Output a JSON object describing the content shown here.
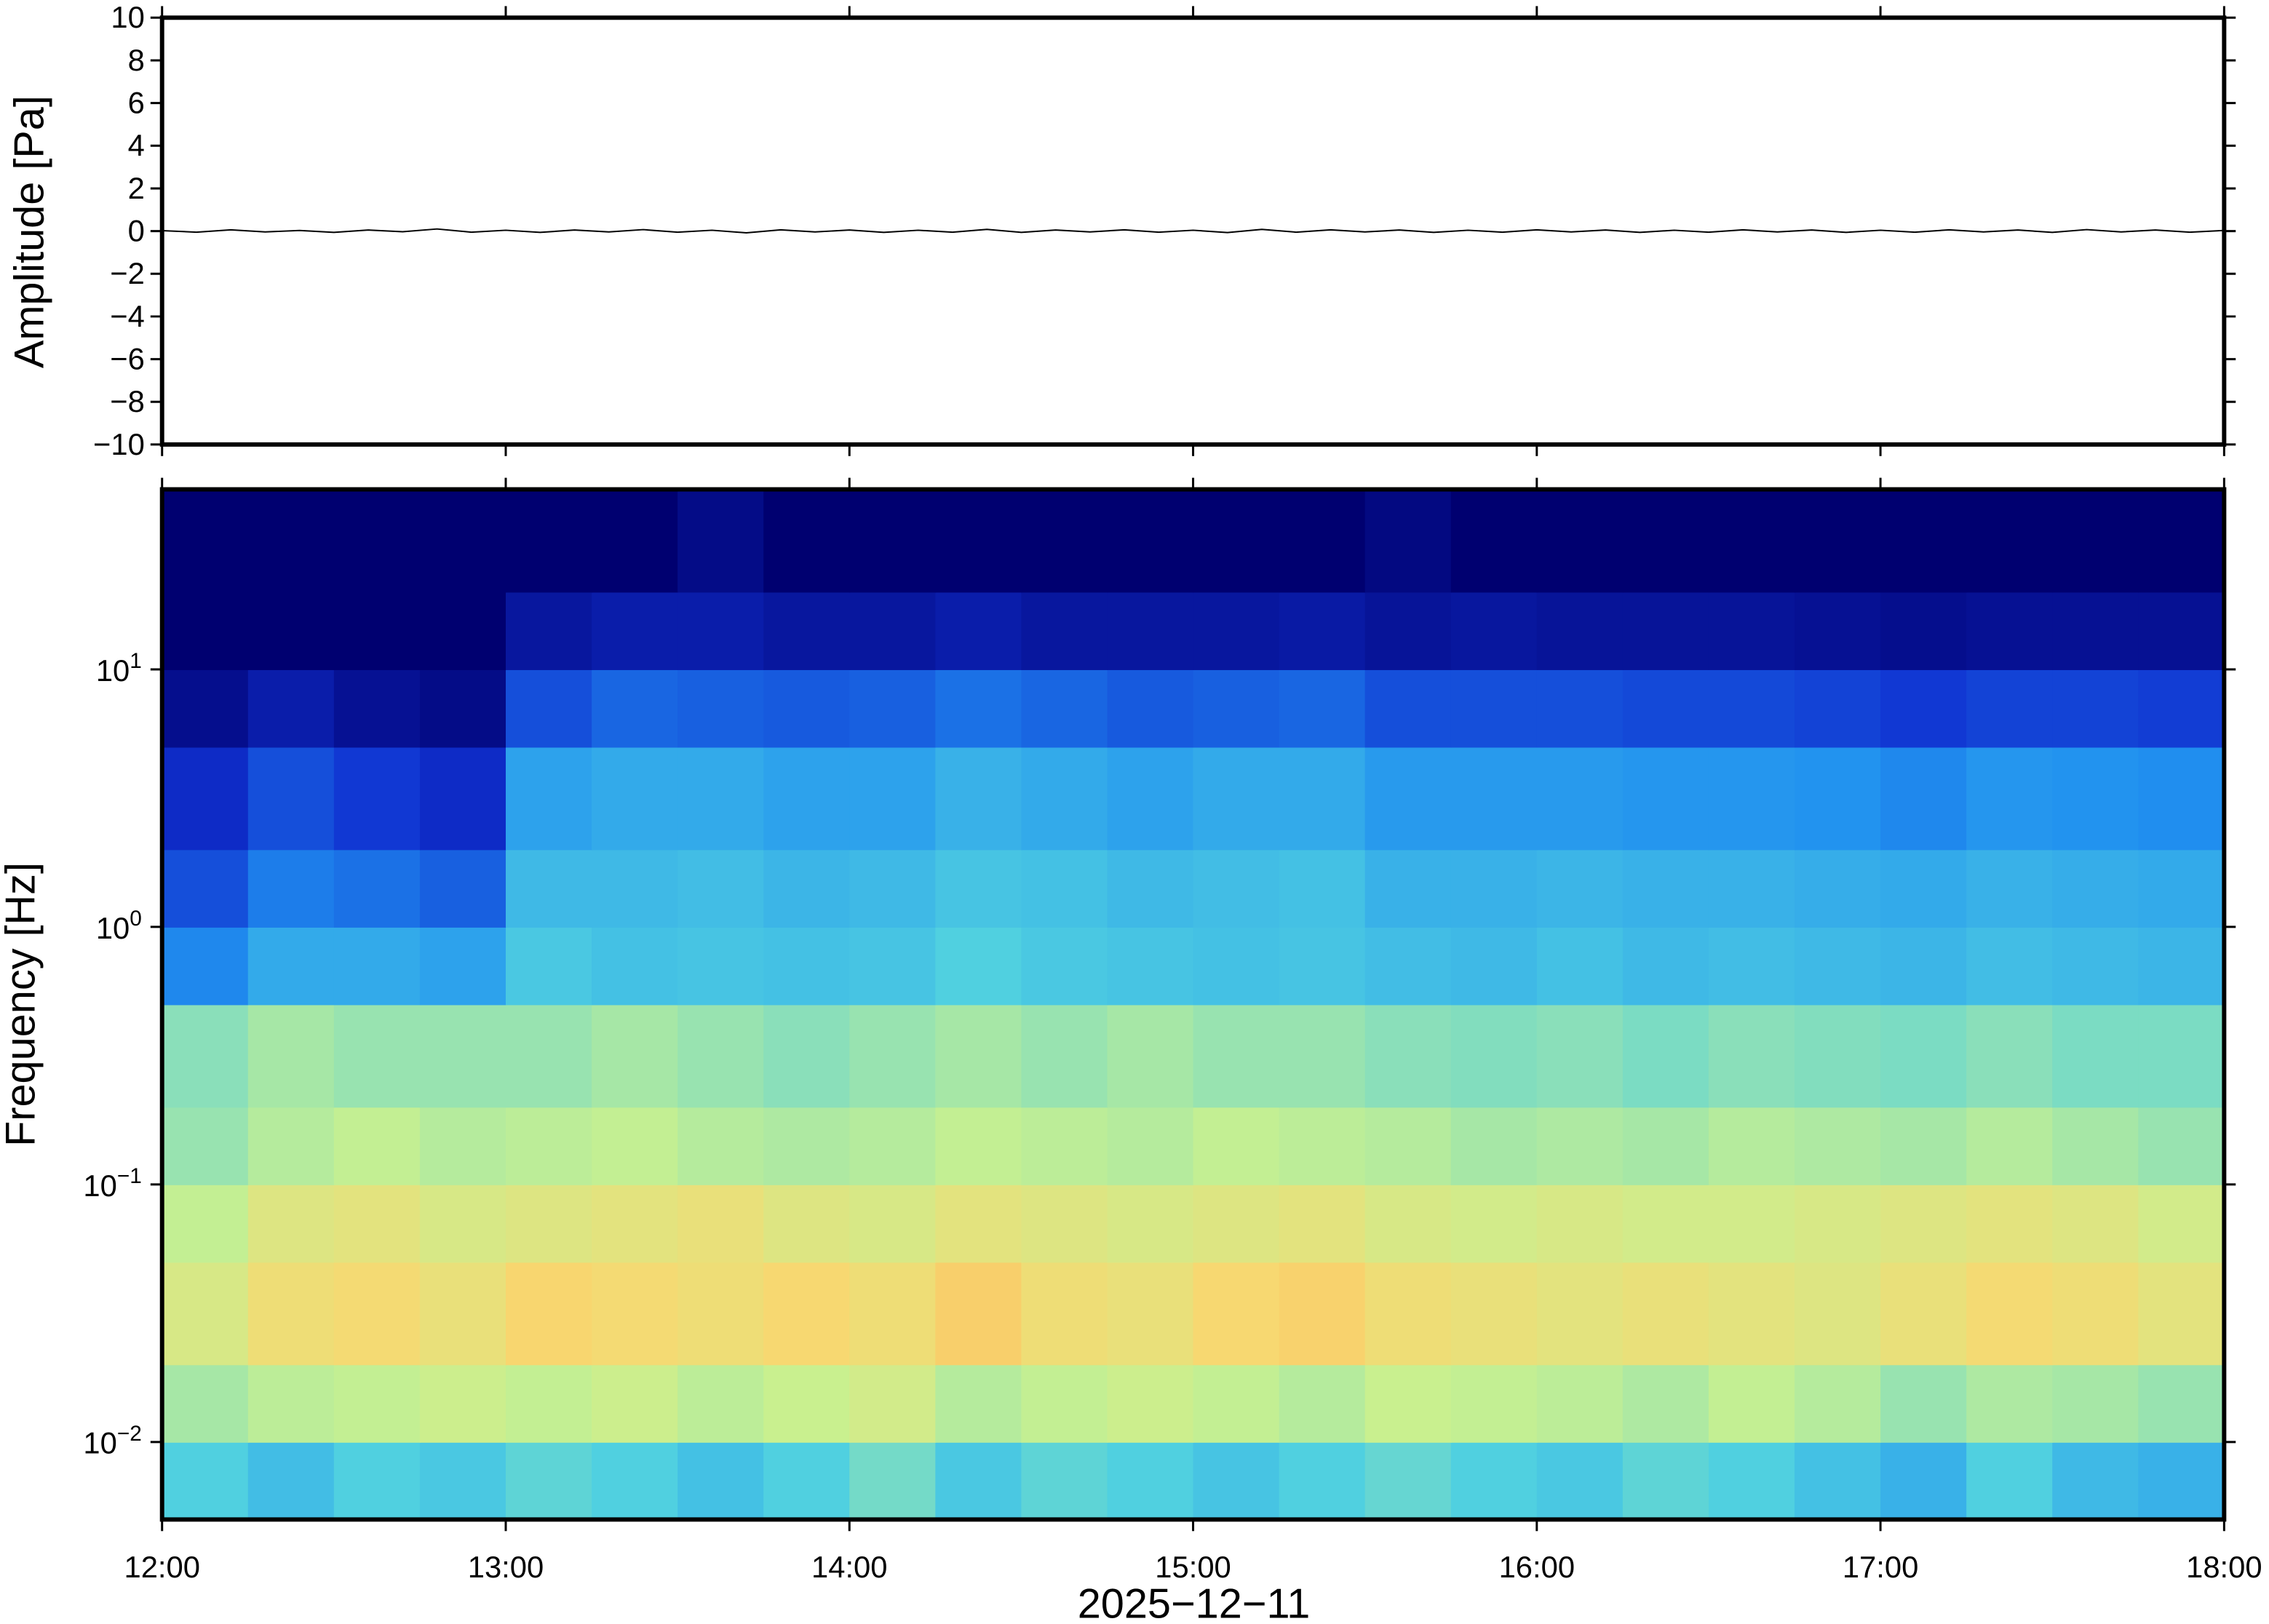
{
  "chart_data": [
    {
      "type": "line",
      "ylabel": "Amplitude [Pa]",
      "xlim": [
        12,
        18
      ],
      "ylim": [
        -10,
        10
      ],
      "yticks": [
        {
          "value": -10,
          "label": "−10"
        },
        {
          "value": -8,
          "label": "−8"
        },
        {
          "value": -6,
          "label": "−6"
        },
        {
          "value": -4,
          "label": "−4"
        },
        {
          "value": -2,
          "label": "−2"
        },
        0,
        2,
        4,
        6,
        8,
        10
      ],
      "xticks": [
        12,
        13,
        14,
        15,
        16,
        17,
        18
      ],
      "color": "#000000",
      "x": [
        12,
        12.1,
        12.2,
        12.3,
        12.4,
        12.5,
        12.6,
        12.7,
        12.8,
        12.9,
        13,
        13.1,
        13.2,
        13.3,
        13.4,
        13.5,
        13.6,
        13.7,
        13.8,
        13.9,
        14,
        14.1,
        14.2,
        14.3,
        14.4,
        14.5,
        14.6,
        14.7,
        14.8,
        14.9,
        15,
        15.1,
        15.2,
        15.3,
        15.4,
        15.5,
        15.6,
        15.7,
        15.8,
        15.9,
        16,
        16.1,
        16.2,
        16.3,
        16.4,
        16.5,
        16.6,
        16.7,
        16.8,
        16.9,
        17,
        17.1,
        17.2,
        17.3,
        17.4,
        17.5,
        17.6,
        17.7,
        17.8,
        17.9,
        18
      ],
      "values": [
        0.02,
        -0.05,
        0.06,
        -0.04,
        0.03,
        -0.06,
        0.05,
        -0.03,
        0.1,
        -0.05,
        0.04,
        -0.06,
        0.05,
        -0.04,
        0.07,
        -0.05,
        0.04,
        -0.08,
        0.06,
        -0.04,
        0.05,
        -0.06,
        0.04,
        -0.05,
        0.08,
        -0.06,
        0.05,
        -0.04,
        0.06,
        -0.05,
        0.04,
        -0.07,
        0.08,
        -0.05,
        0.06,
        -0.04,
        0.05,
        -0.06,
        0.04,
        -0.05,
        0.06,
        -0.04,
        0.05,
        -0.06,
        0.04,
        -0.05,
        0.06,
        -0.04,
        0.05,
        -0.06,
        0.04,
        -0.05,
        0.06,
        -0.04,
        0.05,
        -0.06,
        0.07,
        -0.04,
        0.05,
        -0.05,
        0.03
      ]
    },
    {
      "type": "heatmap",
      "ylabel": "Frequency [Hz]",
      "xlabel": "2025−12−11",
      "log_y": true,
      "xlim": [
        12,
        18
      ],
      "ylim": [
        0.005,
        50
      ],
      "xticks": [
        {
          "value": 12,
          "label": "12:00"
        },
        {
          "value": 13,
          "label": "13:00"
        },
        {
          "value": 14,
          "label": "14:00"
        },
        {
          "value": 15,
          "label": "15:00"
        },
        {
          "value": 16,
          "label": "16:00"
        },
        {
          "value": 17,
          "label": "17:00"
        },
        {
          "value": 18,
          "label": "18:00"
        }
      ],
      "yticks": [
        {
          "value": 0.01,
          "label": "10",
          "exponent": "−2"
        },
        {
          "value": 0.1,
          "label": "10",
          "exponent": "−1"
        },
        {
          "value": 1,
          "label": "10",
          "exponent": "0"
        },
        {
          "value": 10,
          "label": "10",
          "exponent": "1"
        }
      ],
      "colormap": [
        "#000070",
        "#1030d0",
        "#2090f0",
        "#50d0e0",
        "#c8f090",
        "#f8d870",
        "#f8a050"
      ],
      "zlim": [
        0,
        1
      ],
      "x_edges": [
        12,
        12.25,
        12.5,
        12.75,
        13,
        13.25,
        13.5,
        13.75,
        14,
        14.25,
        14.5,
        14.75,
        15,
        15.25,
        15.5,
        15.75,
        16,
        16.25,
        16.5,
        16.75,
        17,
        17.25,
        17.5,
        17.75,
        18
      ],
      "y_edges": [
        0.005,
        0.01,
        0.02,
        0.05,
        0.1,
        0.2,
        0.5,
        1,
        2,
        5,
        10,
        20,
        50
      ],
      "z": [
        [
          0.5,
          0.45,
          0.5,
          0.48,
          0.52,
          0.5,
          0.46,
          0.5,
          0.55,
          0.48,
          0.52,
          0.5,
          0.47,
          0.5,
          0.53,
          0.5,
          0.48,
          0.52,
          0.5,
          0.46,
          0.42,
          0.5,
          0.44,
          0.42
        ],
        [
          0.62,
          0.65,
          0.66,
          0.68,
          0.66,
          0.68,
          0.65,
          0.67,
          0.7,
          0.64,
          0.66,
          0.68,
          0.66,
          0.64,
          0.67,
          0.66,
          0.65,
          0.63,
          0.66,
          0.64,
          0.6,
          0.63,
          0.62,
          0.6
        ],
        [
          0.72,
          0.8,
          0.82,
          0.78,
          0.84,
          0.82,
          0.8,
          0.83,
          0.8,
          0.86,
          0.8,
          0.78,
          0.83,
          0.85,
          0.8,
          0.78,
          0.76,
          0.78,
          0.76,
          0.74,
          0.78,
          0.82,
          0.8,
          0.76
        ],
        [
          0.66,
          0.74,
          0.76,
          0.72,
          0.74,
          0.76,
          0.78,
          0.74,
          0.72,
          0.76,
          0.74,
          0.72,
          0.74,
          0.76,
          0.72,
          0.7,
          0.72,
          0.7,
          0.7,
          0.72,
          0.74,
          0.76,
          0.74,
          0.7
        ],
        [
          0.6,
          0.64,
          0.66,
          0.64,
          0.65,
          0.66,
          0.64,
          0.63,
          0.64,
          0.66,
          0.65,
          0.64,
          0.66,
          0.65,
          0.64,
          0.62,
          0.63,
          0.62,
          0.64,
          0.63,
          0.62,
          0.64,
          0.62,
          0.6
        ],
        [
          0.58,
          0.62,
          0.6,
          0.6,
          0.6,
          0.62,
          0.6,
          0.58,
          0.6,
          0.62,
          0.6,
          0.62,
          0.6,
          0.6,
          0.58,
          0.57,
          0.58,
          0.56,
          0.58,
          0.57,
          0.56,
          0.58,
          0.56,
          0.56
        ],
        [
          0.32,
          0.4,
          0.4,
          0.38,
          0.48,
          0.46,
          0.47,
          0.46,
          0.47,
          0.5,
          0.48,
          0.47,
          0.46,
          0.47,
          0.45,
          0.44,
          0.46,
          0.44,
          0.45,
          0.44,
          0.43,
          0.45,
          0.44,
          0.43
        ],
        [
          0.22,
          0.3,
          0.28,
          0.25,
          0.44,
          0.44,
          0.45,
          0.43,
          0.44,
          0.47,
          0.46,
          0.44,
          0.45,
          0.46,
          0.42,
          0.42,
          0.43,
          0.42,
          0.42,
          0.41,
          0.4,
          0.42,
          0.41,
          0.4
        ],
        [
          0.15,
          0.22,
          0.18,
          0.15,
          0.38,
          0.4,
          0.4,
          0.38,
          0.38,
          0.42,
          0.4,
          0.38,
          0.4,
          0.4,
          0.36,
          0.36,
          0.36,
          0.35,
          0.35,
          0.34,
          0.32,
          0.35,
          0.34,
          0.33
        ],
        [
          0.05,
          0.1,
          0.06,
          0.04,
          0.22,
          0.26,
          0.25,
          0.24,
          0.25,
          0.28,
          0.26,
          0.24,
          0.25,
          0.26,
          0.22,
          0.22,
          0.22,
          0.21,
          0.21,
          0.2,
          0.18,
          0.2,
          0.2,
          0.19
        ],
        [
          0,
          0,
          0,
          0,
          0.08,
          0.1,
          0.1,
          0.08,
          0.08,
          0.1,
          0.08,
          0.08,
          0.08,
          0.09,
          0.07,
          0.08,
          0.07,
          0.07,
          0.07,
          0.06,
          0.05,
          0.06,
          0.06,
          0.06
        ],
        [
          0,
          0,
          0,
          0,
          0,
          0,
          0.04,
          0,
          0,
          0,
          0,
          0,
          0,
          0,
          0.03,
          0,
          0,
          0,
          0,
          0,
          0,
          0,
          0,
          0
        ]
      ]
    }
  ]
}
